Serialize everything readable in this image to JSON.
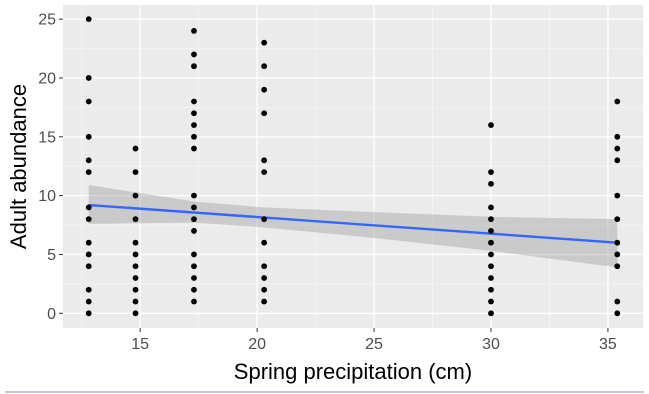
{
  "chart_data": {
    "type": "scatter",
    "title": "",
    "xlabel": "Spring precipitation (cm)",
    "ylabel": "Adult abundance",
    "xlim": [
      11.7,
      36.5
    ],
    "ylim": [
      -1.25,
      26.2
    ],
    "x_ticks": [
      15,
      20,
      25,
      30,
      35
    ],
    "y_ticks": [
      0,
      5,
      10,
      15,
      20,
      25
    ],
    "grid": true,
    "legend": "none",
    "points": [
      {
        "x": 12.8,
        "y": 25
      },
      {
        "x": 12.8,
        "y": 20
      },
      {
        "x": 12.8,
        "y": 18
      },
      {
        "x": 12.8,
        "y": 15
      },
      {
        "x": 12.8,
        "y": 13
      },
      {
        "x": 12.8,
        "y": 12
      },
      {
        "x": 12.8,
        "y": 9
      },
      {
        "x": 12.8,
        "y": 8
      },
      {
        "x": 12.8,
        "y": 6
      },
      {
        "x": 12.8,
        "y": 5
      },
      {
        "x": 12.8,
        "y": 4
      },
      {
        "x": 12.8,
        "y": 2
      },
      {
        "x": 12.8,
        "y": 1
      },
      {
        "x": 12.8,
        "y": 0
      },
      {
        "x": 14.8,
        "y": 14
      },
      {
        "x": 14.8,
        "y": 12
      },
      {
        "x": 14.8,
        "y": 10
      },
      {
        "x": 14.8,
        "y": 8
      },
      {
        "x": 14.8,
        "y": 6
      },
      {
        "x": 14.8,
        "y": 5
      },
      {
        "x": 14.8,
        "y": 4
      },
      {
        "x": 14.8,
        "y": 3
      },
      {
        "x": 14.8,
        "y": 2
      },
      {
        "x": 14.8,
        "y": 1
      },
      {
        "x": 14.8,
        "y": 0
      },
      {
        "x": 17.3,
        "y": 24
      },
      {
        "x": 17.3,
        "y": 22
      },
      {
        "x": 17.3,
        "y": 21
      },
      {
        "x": 17.3,
        "y": 18
      },
      {
        "x": 17.3,
        "y": 17
      },
      {
        "x": 17.3,
        "y": 16
      },
      {
        "x": 17.3,
        "y": 15
      },
      {
        "x": 17.3,
        "y": 14
      },
      {
        "x": 17.3,
        "y": 10
      },
      {
        "x": 17.3,
        "y": 9
      },
      {
        "x": 17.3,
        "y": 8
      },
      {
        "x": 17.3,
        "y": 7
      },
      {
        "x": 17.3,
        "y": 5
      },
      {
        "x": 17.3,
        "y": 4
      },
      {
        "x": 17.3,
        "y": 3
      },
      {
        "x": 17.3,
        "y": 2
      },
      {
        "x": 17.3,
        "y": 1
      },
      {
        "x": 20.3,
        "y": 23
      },
      {
        "x": 20.3,
        "y": 21
      },
      {
        "x": 20.3,
        "y": 19
      },
      {
        "x": 20.3,
        "y": 17
      },
      {
        "x": 20.3,
        "y": 13
      },
      {
        "x": 20.3,
        "y": 12
      },
      {
        "x": 20.3,
        "y": 8
      },
      {
        "x": 20.3,
        "y": 6
      },
      {
        "x": 20.3,
        "y": 4
      },
      {
        "x": 20.3,
        "y": 3
      },
      {
        "x": 20.3,
        "y": 2
      },
      {
        "x": 20.3,
        "y": 1
      },
      {
        "x": 30.0,
        "y": 16
      },
      {
        "x": 30.0,
        "y": 12
      },
      {
        "x": 30.0,
        "y": 11
      },
      {
        "x": 30.0,
        "y": 9
      },
      {
        "x": 30.0,
        "y": 8
      },
      {
        "x": 30.0,
        "y": 7
      },
      {
        "x": 30.0,
        "y": 6
      },
      {
        "x": 30.0,
        "y": 5
      },
      {
        "x": 30.0,
        "y": 4
      },
      {
        "x": 30.0,
        "y": 3
      },
      {
        "x": 30.0,
        "y": 2
      },
      {
        "x": 30.0,
        "y": 1
      },
      {
        "x": 30.0,
        "y": 0
      },
      {
        "x": 35.4,
        "y": 18
      },
      {
        "x": 35.4,
        "y": 15
      },
      {
        "x": 35.4,
        "y": 14
      },
      {
        "x": 35.4,
        "y": 13
      },
      {
        "x": 35.4,
        "y": 10
      },
      {
        "x": 35.4,
        "y": 8
      },
      {
        "x": 35.4,
        "y": 6
      },
      {
        "x": 35.4,
        "y": 5
      },
      {
        "x": 35.4,
        "y": 4
      },
      {
        "x": 35.4,
        "y": 1
      },
      {
        "x": 35.4,
        "y": 0
      }
    ],
    "trend_line": {
      "type": "linear",
      "color": "#3366ff",
      "x": [
        12.8,
        35.4
      ],
      "y": [
        9.2,
        6.0
      ],
      "ci_color": "#999999",
      "ci_lower": [
        {
          "x": 12.8,
          "y": 7.6
        },
        {
          "x": 17.3,
          "y": 7.7
        },
        {
          "x": 20.3,
          "y": 7.3
        },
        {
          "x": 25.0,
          "y": 6.4
        },
        {
          "x": 30.0,
          "y": 5.3
        },
        {
          "x": 35.4,
          "y": 3.9
        }
      ],
      "ci_upper": [
        {
          "x": 12.8,
          "y": 10.9
        },
        {
          "x": 17.3,
          "y": 9.5
        },
        {
          "x": 20.3,
          "y": 9.0
        },
        {
          "x": 25.0,
          "y": 8.6
        },
        {
          "x": 30.0,
          "y": 8.2
        },
        {
          "x": 35.4,
          "y": 8.0
        }
      ]
    },
    "colors": {
      "panel_background": "#ebebeb",
      "grid_major": "#ffffff",
      "grid_minor": "#f5f5f5",
      "point": "#000000",
      "tick_mark": "#333333",
      "footer_rule": "#b4b4c8"
    }
  }
}
